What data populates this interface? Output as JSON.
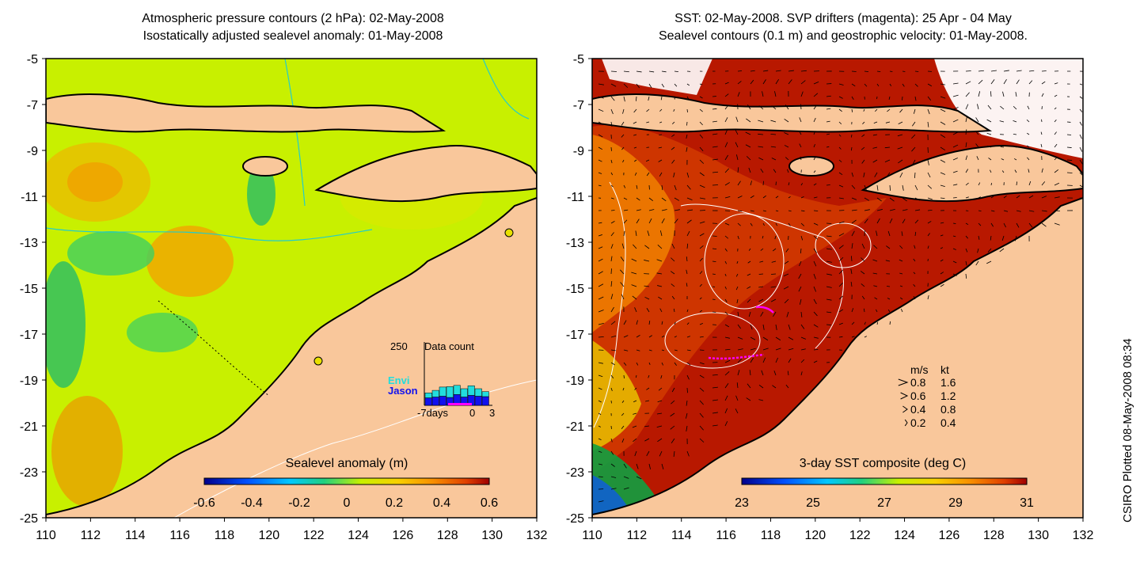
{
  "left_panel": {
    "title_line1": "Atmospheric pressure contours (2 hPa): 02-May-2008",
    "title_line2": "Isostatically adjusted sealevel anomaly: 01-May-2008",
    "colorbar": {
      "label": "Sealevel anomaly (m)",
      "ticks": [
        "-0.6",
        "-0.4",
        "-0.2",
        "0",
        "0.2",
        "0.4",
        "0.6"
      ]
    },
    "inset": {
      "title": "Data count",
      "y_max_label": "250",
      "series_labels": [
        "Envi",
        "Jason"
      ],
      "series_colors": [
        "#22dddd",
        "#1111ee"
      ],
      "x_labels": [
        "-7days",
        "0",
        "3"
      ],
      "counts": {
        "jason": [
          90,
          100,
          110,
          95,
          130,
          100,
          120,
          110,
          105
        ],
        "envi": [
          60,
          80,
          110,
          130,
          110,
          100,
          115,
          90,
          60
        ]
      }
    }
  },
  "right_panel": {
    "title_line1": "SST: 02-May-2008. SVP drifters (magenta): 25 Apr - 04 May",
    "title_line2": "Sealevel contours (0.1 m) and geostrophic velocity: 01-May-2008.",
    "colorbar": {
      "label": "3-day SST composite (deg C)",
      "ticks": [
        "23",
        "25",
        "27",
        "29",
        "31"
      ]
    },
    "velocity_key": {
      "header_ms": "m/s",
      "header_kt": "kt",
      "rows": [
        {
          "ms": "0.8",
          "kt": "1.6"
        },
        {
          "ms": "0.6",
          "kt": "1.2"
        },
        {
          "ms": "0.4",
          "kt": "0.8"
        },
        {
          "ms": "0.2",
          "kt": "0.4"
        }
      ]
    }
  },
  "axes": {
    "x_ticks": [
      "110",
      "112",
      "114",
      "116",
      "118",
      "120",
      "122",
      "124",
      "126",
      "128",
      "130",
      "132"
    ],
    "y_ticks": [
      "-5",
      "-7",
      "-9",
      "-11",
      "-13",
      "-15",
      "-17",
      "-19",
      "-21",
      "-23",
      "-25"
    ]
  },
  "credit": "CSIRO Plotted 08-May-2008 08:34",
  "colors": {
    "land": "#f9c79b",
    "sla_background": "#c8f000",
    "sst_background": "#b81800",
    "drifter": "#ff00ff",
    "contour_pressure": "#22cccc"
  }
}
